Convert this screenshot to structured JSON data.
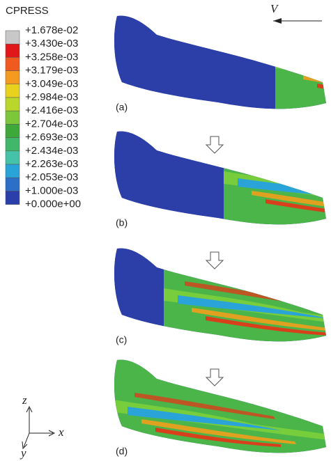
{
  "legend": {
    "title": "CPRESS",
    "labels": [
      "+1.678e-02",
      "+3.430e-03",
      "+3.258e-03",
      "+3.179e-03",
      "+3.049e-03",
      "+2.984e-03",
      "+2.416e-03",
      "+2.704e-03",
      "+2.693e-03",
      "+2.434e-03",
      "+2.263e-03",
      "+2.053e-03",
      "+1.000e-03",
      "+0.000e+00"
    ],
    "colors": [
      "#c8c8c8",
      "#e01818",
      "#f05a1e",
      "#f39a1f",
      "#e8d21e",
      "#b9d62a",
      "#7cc63a",
      "#3ea83a",
      "#41b76a",
      "#44c3a8",
      "#2aa3d8",
      "#2b6fc6",
      "#2a3faa"
    ]
  },
  "panels": [
    {
      "label": "(a)"
    },
    {
      "label": "(b)"
    },
    {
      "label": "(c)"
    },
    {
      "label": "(d)"
    }
  ],
  "velocity": "V",
  "axes": {
    "z": "z",
    "x": "x",
    "y": "y"
  }
}
